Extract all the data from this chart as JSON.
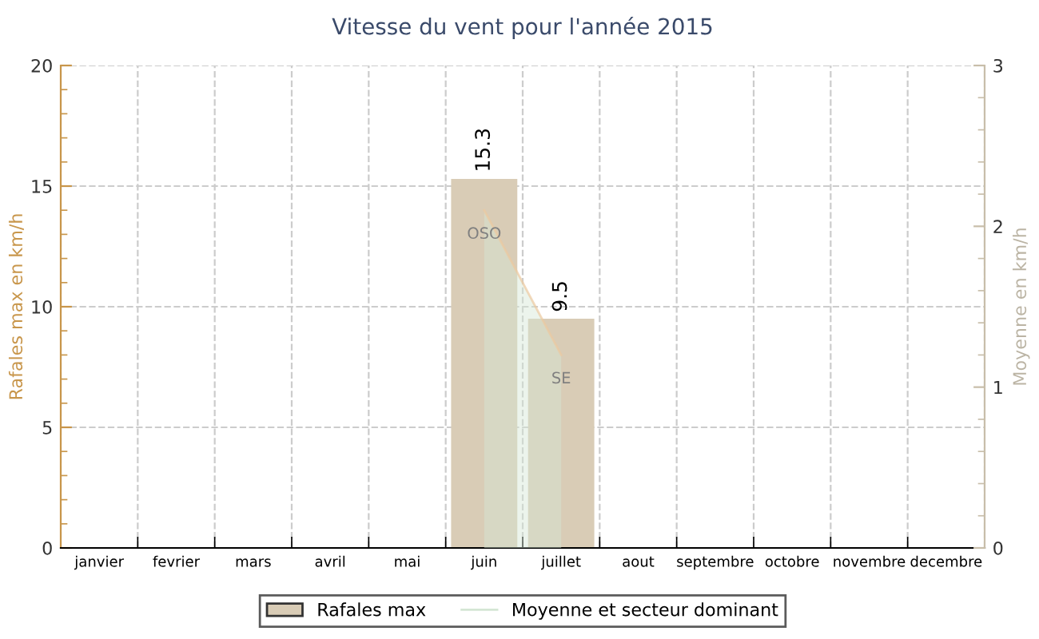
{
  "chart_data": {
    "type": "bar",
    "title": "Vitesse du vent pour l'année 2015",
    "categories": [
      "janvier",
      "fevrier",
      "mars",
      "avril",
      "mai",
      "juin",
      "juillet",
      "aout",
      "septembre",
      "octobre",
      "novembre",
      "decembre"
    ],
    "series": [
      {
        "name": "Rafales max",
        "color": "#d9ccb6",
        "values": [
          null,
          null,
          null,
          null,
          null,
          15.3,
          9.5,
          null,
          null,
          null,
          null,
          null
        ],
        "value_labels": [
          null,
          null,
          null,
          null,
          null,
          "15.3",
          "9.5",
          null,
          null,
          null,
          null,
          null
        ]
      },
      {
        "name": "Moyenne et secteur dominant",
        "type": "area",
        "axis": "y2",
        "color": "#d4e6d4",
        "values": [
          null,
          null,
          null,
          null,
          null,
          2.1,
          1.2,
          null,
          null,
          null,
          null,
          null
        ]
      }
    ],
    "annotations": [
      {
        "text": "OSO",
        "x": "juin",
        "y": 13
      },
      {
        "text": "SE",
        "x": "juillet",
        "y": 7
      }
    ],
    "ylabel": "Rafales max en km/h",
    "y2label": "Moyenne en km/h",
    "ylim": [
      0,
      20
    ],
    "yticks": [
      0,
      5,
      10,
      15,
      20
    ],
    "y2lim": [
      0,
      3
    ],
    "y2ticks": [
      0,
      1,
      2,
      3
    ],
    "grid": true,
    "legend": "bottom"
  }
}
